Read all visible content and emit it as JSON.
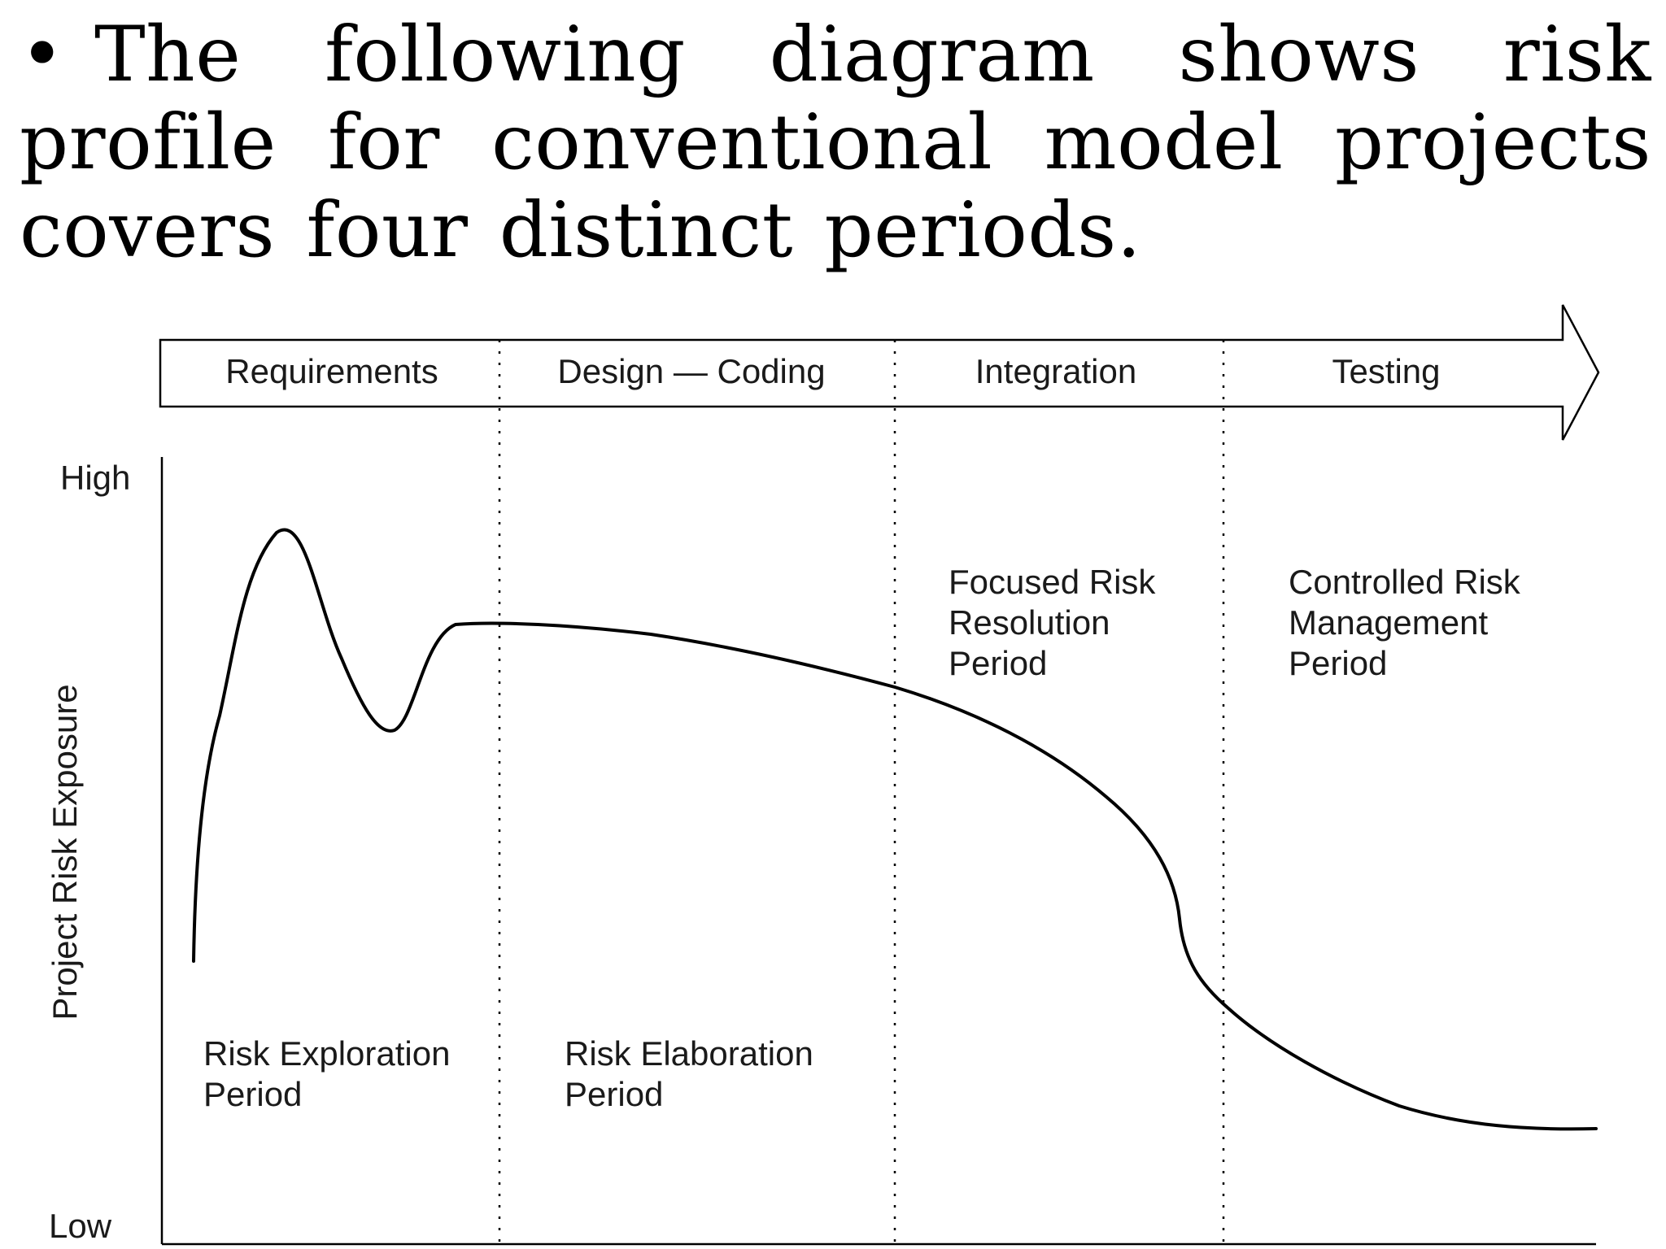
{
  "bullet": {
    "symbol": "•",
    "text": "The following diagram shows risk profile for conventional model projects covers four distinct periods."
  },
  "diagram": {
    "phases": [
      "Requirements",
      "Design — Coding",
      "Integration",
      "Testing"
    ],
    "y_axis": {
      "label": "Project Risk Exposure",
      "high": "High",
      "low": "Low"
    },
    "periods": [
      [
        "Risk Exploration",
        "Period"
      ],
      [
        "Risk Elaboration",
        "Period"
      ],
      [
        "Focused Risk",
        "Resolution",
        "Period"
      ],
      [
        "Controlled Risk",
        "Management",
        "Period"
      ]
    ],
    "colors": {
      "ink": "#000000",
      "text": "#1a1a1a",
      "background": "#ffffff"
    }
  }
}
